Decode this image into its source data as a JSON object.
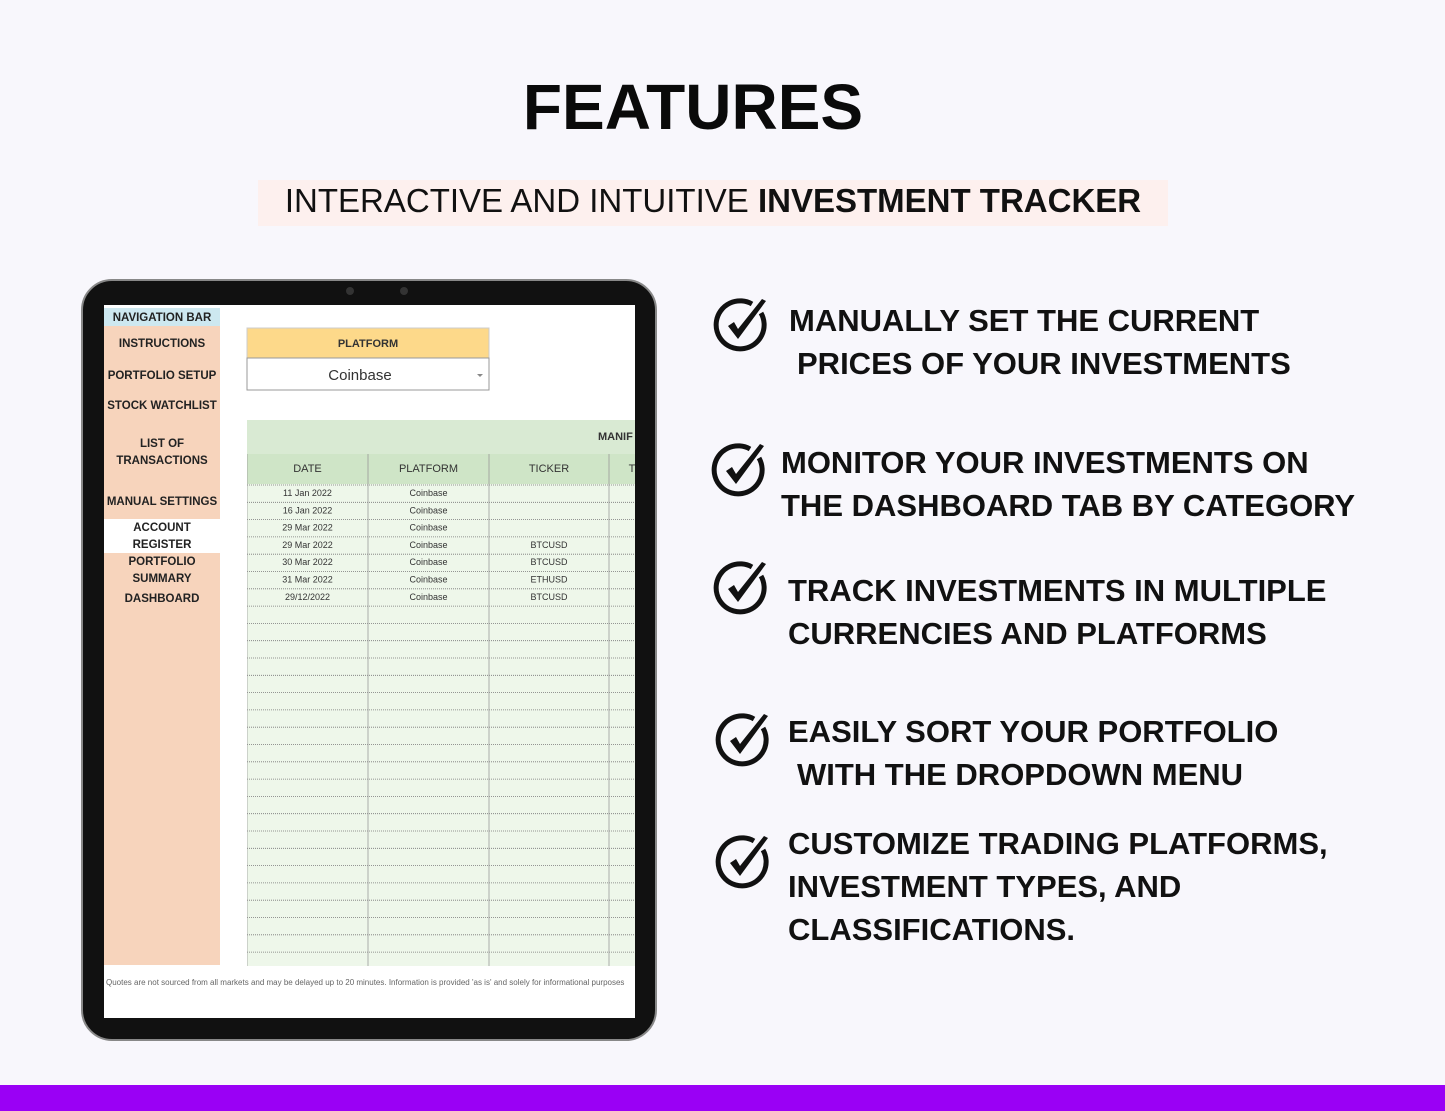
{
  "header": {
    "title": "FEATURES",
    "subtitle_regular": "INTERACTIVE AND INTUITIVE",
    "subtitle_bold": "INVESTMENT TRACKER"
  },
  "tablet": {
    "nav_title": "NAVIGATION BAR",
    "nav_items": [
      "INSTRUCTIONS",
      "PORTFOLIO SETUP",
      "STOCK WATCHLIST",
      [
        "LIST OF",
        "TRANSACTIONS"
      ],
      "MANUAL SETTINGS",
      [
        "ACCOUNT",
        "REGISTER"
      ],
      [
        "PORTFOLIO",
        "SUMMARY"
      ],
      "DASHBOARD"
    ],
    "platform_label": "PLATFORM",
    "platform_value": "Coinbase",
    "table_title": "MANIF",
    "columns": [
      "DATE",
      "PLATFORM",
      "TICKER",
      "T"
    ],
    "rows": [
      [
        "11 Jan 2022",
        "Coinbase",
        null
      ],
      [
        "16 Jan 2022",
        "Coinbase",
        null
      ],
      [
        "29 Mar 2022",
        "Coinbase",
        null
      ],
      [
        "29 Mar 2022",
        "Coinbase",
        "BTCUSD"
      ],
      [
        "30 Mar 2022",
        "Coinbase",
        "BTCUSD"
      ],
      [
        "31 Mar 2022",
        "Coinbase",
        "ETHUSD"
      ],
      [
        "29/12/2022",
        "Coinbase",
        "BTCUSD"
      ]
    ],
    "footer_note": "Quotes are not sourced from all markets and may be delayed up to 20 minutes. Information is provided 'as is' and solely for informational purposes"
  },
  "features": [
    [
      "MANUALLY SET THE CURRENT",
      "PRICES OF YOUR INVESTMENTS"
    ],
    [
      "MONITOR YOUR INVESTMENTS ON",
      "THE DASHBOARD TAB BY CATEGORY"
    ],
    [
      "TRACK INVESTMENTS IN MULTIPLE",
      "CURRENCIES AND PLATFORMS"
    ],
    [
      "EASILY SORT YOUR PORTFOLIO",
      "WITH THE DROPDOWN MENU"
    ],
    [
      "CUSTOMIZE TRADING PLATFORMS,",
      "INVESTMENT TYPES, AND",
      "CLASSIFICATIONS."
    ]
  ]
}
